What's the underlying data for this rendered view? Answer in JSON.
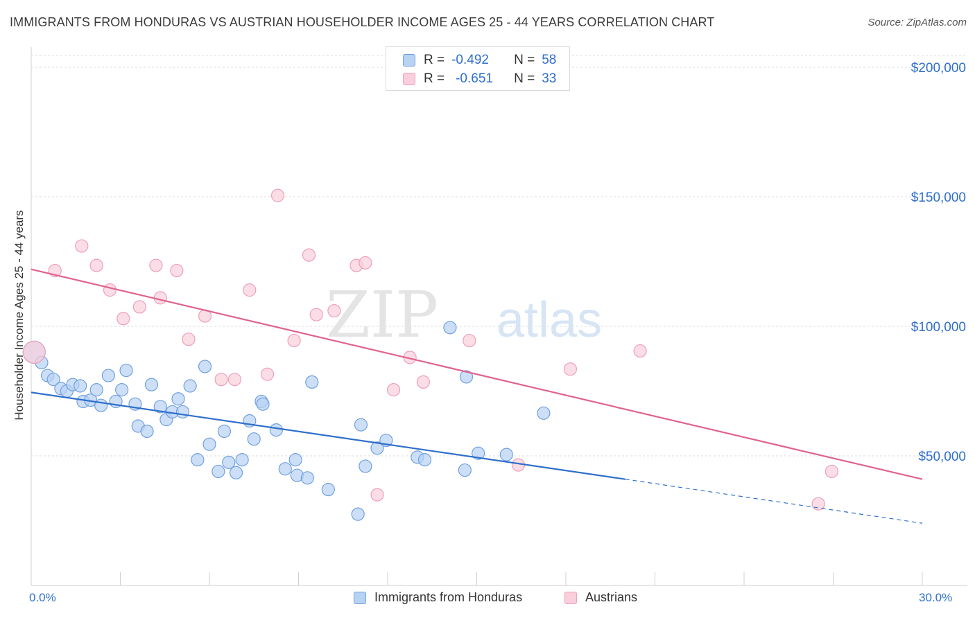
{
  "title": "IMMIGRANTS FROM HONDURAS VS AUSTRIAN HOUSEHOLDER INCOME AGES 25 - 44 YEARS CORRELATION CHART",
  "source": "Source: ZipAtlas.com",
  "watermark": {
    "zip": "ZIP",
    "atlas": "atlas"
  },
  "legend_top": {
    "rows": [
      {
        "r_label": "R =",
        "r_value": "-0.492",
        "n_label": "N =",
        "n_value": "58",
        "color": "#6fa0e0"
      },
      {
        "r_label": "R =",
        "r_value": "-0.651",
        "n_label": "N =",
        "n_value": "33",
        "color": "#f1a0b8"
      }
    ]
  },
  "legend_bottom": [
    "Immigrants from Honduras",
    "Austrians"
  ],
  "colors": {
    "blue_fill": "#b8d2f4",
    "blue_stroke": "#6fa0e0",
    "blue_line": "#2f6fcb",
    "pink_fill": "#f9cfdc",
    "pink_stroke": "#eda0b8",
    "pink_line": "#e0628f",
    "axis_label": "#2f6fcb",
    "grid": "#dedede"
  },
  "chart_data": {
    "type": "scatter",
    "title": "IMMIGRANTS FROM HONDURAS VS AUSTRIAN HOUSEHOLDER INCOME AGES 25 - 44 YEARS CORRELATION CHART",
    "xlabel": "",
    "ylabel": "Householder Income Ages 25 - 44 years",
    "x_tick_labels": [
      "0.0%",
      "30.0%"
    ],
    "y_tick_labels": [
      "$50,000",
      "$100,000",
      "$150,000",
      "$200,000"
    ],
    "y_ticks": [
      50000,
      100000,
      150000,
      200000
    ],
    "xlim": [
      0,
      30
    ],
    "ylim": [
      0,
      205000
    ],
    "grid": true,
    "legend_position": "top-center",
    "series": [
      {
        "name": "Immigrants from Honduras",
        "r": -0.492,
        "n": 58,
        "points": [
          [
            0.1,
            90000
          ],
          [
            0.35,
            86000
          ],
          [
            0.55,
            81000
          ],
          [
            0.75,
            79500
          ],
          [
            1.0,
            76000
          ],
          [
            1.2,
            75000
          ],
          [
            1.4,
            77500
          ],
          [
            1.65,
            77000
          ],
          [
            1.75,
            71000
          ],
          [
            2.0,
            71500
          ],
          [
            2.2,
            75500
          ],
          [
            2.35,
            69500
          ],
          [
            2.6,
            81000
          ],
          [
            2.85,
            71000
          ],
          [
            3.05,
            75500
          ],
          [
            3.2,
            83000
          ],
          [
            3.5,
            70000
          ],
          [
            3.6,
            61500
          ],
          [
            3.9,
            59500
          ],
          [
            4.05,
            77500
          ],
          [
            4.35,
            69000
          ],
          [
            4.55,
            64000
          ],
          [
            4.75,
            67000
          ],
          [
            4.95,
            72000
          ],
          [
            5.1,
            67000
          ],
          [
            5.35,
            77000
          ],
          [
            5.6,
            48500
          ],
          [
            5.85,
            84500
          ],
          [
            6.0,
            54500
          ],
          [
            6.3,
            44000
          ],
          [
            6.5,
            59500
          ],
          [
            6.65,
            47500
          ],
          [
            6.9,
            43500
          ],
          [
            7.1,
            48500
          ],
          [
            7.35,
            63500
          ],
          [
            7.5,
            56500
          ],
          [
            7.75,
            71000
          ],
          [
            7.8,
            70000
          ],
          [
            8.25,
            60000
          ],
          [
            8.55,
            45000
          ],
          [
            8.9,
            48500
          ],
          [
            8.95,
            42500
          ],
          [
            9.3,
            41500
          ],
          [
            9.45,
            78500
          ],
          [
            10.0,
            37000
          ],
          [
            11.0,
            27500
          ],
          [
            11.1,
            62000
          ],
          [
            11.25,
            46000
          ],
          [
            11.65,
            53000
          ],
          [
            11.95,
            56000
          ],
          [
            13.0,
            49500
          ],
          [
            13.25,
            48500
          ],
          [
            14.1,
            99500
          ],
          [
            14.6,
            44500
          ],
          [
            14.65,
            80500
          ],
          [
            15.05,
            51000
          ],
          [
            16.0,
            50500
          ],
          [
            17.25,
            66500
          ]
        ]
      },
      {
        "name": "Austrians",
        "r": -0.651,
        "n": 33,
        "points": [
          [
            0.1,
            90000
          ],
          [
            0.8,
            121500
          ],
          [
            1.7,
            131000
          ],
          [
            2.2,
            123500
          ],
          [
            2.65,
            114000
          ],
          [
            3.1,
            103000
          ],
          [
            3.65,
            107500
          ],
          [
            4.2,
            123500
          ],
          [
            4.35,
            111000
          ],
          [
            4.9,
            121500
          ],
          [
            5.3,
            95000
          ],
          [
            5.85,
            104000
          ],
          [
            6.4,
            79500
          ],
          [
            6.85,
            79500
          ],
          [
            7.35,
            114000
          ],
          [
            7.95,
            81500
          ],
          [
            8.3,
            150500
          ],
          [
            8.85,
            94500
          ],
          [
            9.35,
            127500
          ],
          [
            9.6,
            104500
          ],
          [
            10.2,
            106000
          ],
          [
            10.95,
            123500
          ],
          [
            11.25,
            124500
          ],
          [
            11.65,
            35000
          ],
          [
            12.2,
            75500
          ],
          [
            12.75,
            88000
          ],
          [
            13.2,
            78500
          ],
          [
            14.75,
            94500
          ],
          [
            16.4,
            46500
          ],
          [
            18.15,
            83500
          ],
          [
            20.5,
            90500
          ],
          [
            26.5,
            31500
          ],
          [
            26.95,
            44000
          ]
        ]
      }
    ],
    "trend_lines": [
      {
        "series": "Immigrants from Honduras",
        "x_start": 0,
        "y_start": 74500,
        "x_solid_end": 20,
        "y_solid_end": 41000,
        "x_end": 30,
        "y_end": 24000
      },
      {
        "series": "Austrians",
        "x_start": 0,
        "y_start": 122000,
        "x_end": 30,
        "y_end": 41000
      }
    ]
  }
}
